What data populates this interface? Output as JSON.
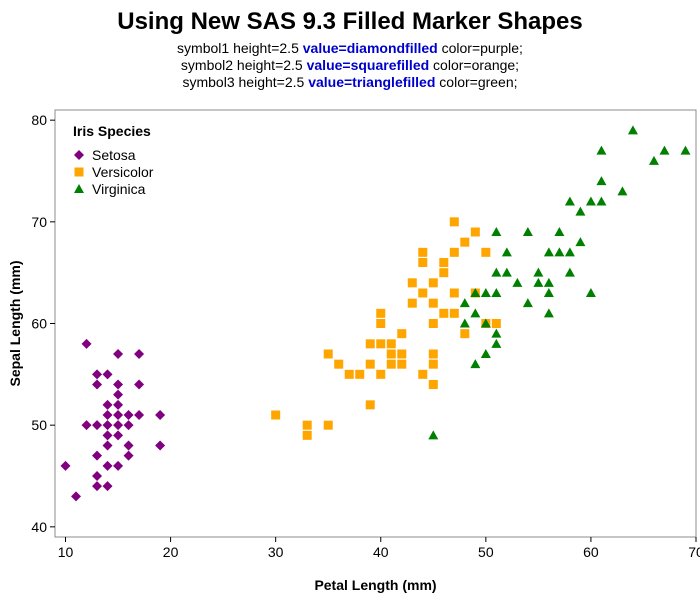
{
  "chart_data": {
    "type": "scatter",
    "title": "Using New SAS 9.3 Filled Marker Shapes",
    "subtitle_lines": [
      {
        "pre": "symbol1 height=2.5 ",
        "kw": "value=diamondfilled",
        "post": " color=purple;"
      },
      {
        "pre": "symbol2 height=2.5 ",
        "kw": "value=squarefilled",
        "post": " color=orange;"
      },
      {
        "pre": "symbol3 height=2.5 ",
        "kw": "value=trianglefilled",
        "post": " color=green;"
      }
    ],
    "xlabel": "Petal Length (mm)",
    "ylabel": "Sepal Length (mm)",
    "xlim": [
      9,
      70
    ],
    "ylim": [
      39,
      81
    ],
    "xticks": [
      10,
      20,
      30,
      40,
      50,
      60,
      70
    ],
    "yticks": [
      40,
      50,
      60,
      70,
      80
    ],
    "grid": false,
    "legend": {
      "title": "Iris Species",
      "position": "top-left"
    },
    "series": [
      {
        "name": "Setosa",
        "marker": "diamond",
        "color": "#800080",
        "points": [
          [
            10,
            46
          ],
          [
            11,
            43
          ],
          [
            12,
            58
          ],
          [
            12,
            50
          ],
          [
            13,
            55
          ],
          [
            13,
            54
          ],
          [
            13,
            50
          ],
          [
            13,
            47
          ],
          [
            13,
            45
          ],
          [
            13,
            44
          ],
          [
            14,
            55
          ],
          [
            14,
            52
          ],
          [
            14,
            51
          ],
          [
            14,
            50
          ],
          [
            14,
            49
          ],
          [
            14,
            48
          ],
          [
            14,
            46
          ],
          [
            14,
            44
          ],
          [
            15,
            57
          ],
          [
            15,
            54
          ],
          [
            15,
            53
          ],
          [
            15,
            52
          ],
          [
            15,
            51
          ],
          [
            15,
            50
          ],
          [
            15,
            49
          ],
          [
            15,
            46
          ],
          [
            16,
            51
          ],
          [
            16,
            50
          ],
          [
            16,
            48
          ],
          [
            16,
            47
          ],
          [
            17,
            57
          ],
          [
            17,
            54
          ],
          [
            17,
            51
          ],
          [
            19,
            51
          ],
          [
            19,
            48
          ]
        ]
      },
      {
        "name": "Versicolor",
        "marker": "square",
        "color": "#ffa500",
        "points": [
          [
            30,
            51
          ],
          [
            33,
            50
          ],
          [
            33,
            49
          ],
          [
            35,
            50
          ],
          [
            35,
            57
          ],
          [
            36,
            56
          ],
          [
            37,
            55
          ],
          [
            38,
            55
          ],
          [
            39,
            58
          ],
          [
            39,
            56
          ],
          [
            39,
            52
          ],
          [
            40,
            61
          ],
          [
            40,
            60
          ],
          [
            40,
            58
          ],
          [
            40,
            55
          ],
          [
            41,
            58
          ],
          [
            41,
            57
          ],
          [
            41,
            56
          ],
          [
            42,
            59
          ],
          [
            42,
            57
          ],
          [
            42,
            56
          ],
          [
            43,
            64
          ],
          [
            43,
            62
          ],
          [
            44,
            67
          ],
          [
            44,
            66
          ],
          [
            44,
            63
          ],
          [
            44,
            55
          ],
          [
            45,
            64
          ],
          [
            45,
            62
          ],
          [
            45,
            60
          ],
          [
            45,
            57
          ],
          [
            45,
            56
          ],
          [
            45,
            54
          ],
          [
            46,
            66
          ],
          [
            46,
            65
          ],
          [
            46,
            61
          ],
          [
            47,
            70
          ],
          [
            47,
            67
          ],
          [
            47,
            63
          ],
          [
            47,
            61
          ],
          [
            48,
            68
          ],
          [
            48,
            59
          ],
          [
            49,
            69
          ],
          [
            49,
            63
          ],
          [
            50,
            67
          ],
          [
            50,
            60
          ],
          [
            51,
            60
          ]
        ]
      },
      {
        "name": "Virginica",
        "marker": "triangle",
        "color": "#008000",
        "points": [
          [
            45,
            49
          ],
          [
            48,
            62
          ],
          [
            48,
            60
          ],
          [
            49,
            63
          ],
          [
            49,
            61
          ],
          [
            49,
            56
          ],
          [
            50,
            63
          ],
          [
            50,
            60
          ],
          [
            50,
            57
          ],
          [
            51,
            69
          ],
          [
            51,
            65
          ],
          [
            51,
            63
          ],
          [
            51,
            59
          ],
          [
            51,
            58
          ],
          [
            52,
            67
          ],
          [
            52,
            65
          ],
          [
            53,
            64
          ],
          [
            54,
            69
          ],
          [
            54,
            62
          ],
          [
            55,
            65
          ],
          [
            55,
            64
          ],
          [
            56,
            67
          ],
          [
            56,
            64
          ],
          [
            56,
            63
          ],
          [
            56,
            61
          ],
          [
            57,
            69
          ],
          [
            57,
            67
          ],
          [
            58,
            72
          ],
          [
            58,
            67
          ],
          [
            58,
            65
          ],
          [
            59,
            71
          ],
          [
            59,
            68
          ],
          [
            60,
            72
          ],
          [
            60,
            63
          ],
          [
            61,
            77
          ],
          [
            61,
            74
          ],
          [
            61,
            72
          ],
          [
            63,
            73
          ],
          [
            64,
            79
          ],
          [
            66,
            76
          ],
          [
            67,
            77
          ],
          [
            69,
            77
          ]
        ]
      }
    ]
  }
}
